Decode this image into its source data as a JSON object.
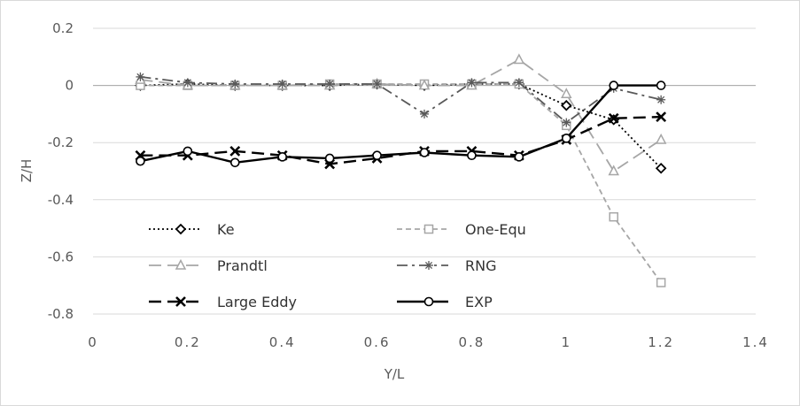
{
  "chart_data": {
    "type": "line",
    "title": "",
    "xlabel": "Y/L",
    "ylabel": "Z/H",
    "xlim": [
      0,
      1.4
    ],
    "ylim": [
      -0.8,
      0.2
    ],
    "x_ticks": [
      0,
      0.2,
      0.4,
      0.6,
      0.8,
      1,
      1.2,
      1.4
    ],
    "x_tick_labels": [
      "0",
      "0.2",
      "0.4",
      "0.6",
      "0.8",
      "1",
      "1.2",
      "1.4"
    ],
    "y_ticks": [
      0.2,
      0,
      -0.2,
      -0.4,
      -0.6,
      -0.8
    ],
    "y_tick_labels": [
      "0.2",
      "0",
      "-0.2",
      "-0.4",
      "-0.6",
      "-0.8"
    ],
    "grid": "horizontal",
    "legend_position": "inside-bottom-left",
    "x": [
      0.1,
      0.2,
      0.3,
      0.4,
      0.5,
      0.6,
      0.7,
      0.8,
      0.9,
      1.0,
      1.1,
      1.2
    ],
    "series": [
      {
        "name": "Ke",
        "line": "dotted",
        "marker": "diamond",
        "color": "#000000",
        "values": [
          0.0,
          0.005,
          0.0,
          0.0,
          0.0,
          0.005,
          0.0,
          0.005,
          0.005,
          -0.07,
          -0.12,
          -0.29
        ]
      },
      {
        "name": "One-Equ",
        "line": "short-dash",
        "marker": "square",
        "color": "#a6a6a6",
        "values": [
          0.0,
          0.0,
          0.0,
          0.0,
          0.005,
          0.005,
          0.005,
          0.005,
          0.005,
          -0.14,
          -0.46,
          -0.69
        ]
      },
      {
        "name": "Prandtl",
        "line": "long-dash",
        "marker": "triangle",
        "color": "#a6a6a6",
        "values": [
          0.02,
          0.0,
          0.0,
          0.0,
          0.0,
          0.005,
          0.0,
          0.0,
          0.09,
          -0.03,
          -0.3,
          -0.19
        ]
      },
      {
        "name": "RNG",
        "line": "dash-dot",
        "marker": "asterisk",
        "color": "#595959",
        "values": [
          0.03,
          0.01,
          0.005,
          0.005,
          0.005,
          0.005,
          -0.1,
          0.01,
          0.01,
          -0.13,
          -0.01,
          -0.05
        ]
      },
      {
        "name": "Large Eddy",
        "line": "long-dash",
        "marker": "x",
        "color": "#000000",
        "values": [
          -0.245,
          -0.245,
          -0.23,
          -0.245,
          -0.275,
          -0.255,
          -0.23,
          -0.23,
          -0.245,
          -0.19,
          -0.115,
          -0.11
        ]
      },
      {
        "name": "EXP",
        "line": "solid",
        "marker": "circle",
        "color": "#000000",
        "values": [
          -0.265,
          -0.23,
          -0.27,
          -0.25,
          -0.255,
          -0.245,
          -0.235,
          -0.245,
          -0.25,
          -0.185,
          0.0,
          0.0
        ]
      }
    ]
  },
  "colors": {
    "axis": "#bfbfbf",
    "grid": "#d9d9d9",
    "tick_text": "#595959",
    "legend_text": "#333333"
  }
}
